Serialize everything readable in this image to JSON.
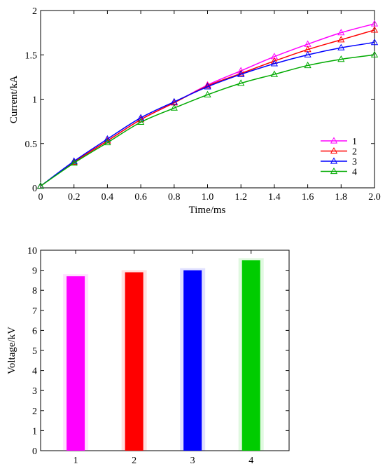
{
  "chart_data": [
    {
      "type": "line",
      "xlabel": "Time/ms",
      "ylabel": "Current/kA",
      "xlim": [
        0,
        2.0
      ],
      "ylim": [
        0,
        2
      ],
      "x_ticks": [
        "0",
        "0.2",
        "0.4",
        "0.6",
        "0.8",
        "1.0",
        "1.2",
        "1.4",
        "1.6",
        "1.8",
        "2.0"
      ],
      "y_ticks": [
        "0",
        "0.5",
        "1",
        "1.5",
        "2"
      ],
      "grid": false,
      "legend_position": "bottom-right",
      "marker": "open-triangle",
      "x": [
        0,
        0.2,
        0.4,
        0.6,
        0.8,
        1.0,
        1.2,
        1.4,
        1.6,
        1.8,
        2.0
      ],
      "series": [
        {
          "name": "1",
          "color": "#ff00ff",
          "values": [
            0.02,
            0.29,
            0.53,
            0.77,
            0.96,
            1.16,
            1.32,
            1.48,
            1.62,
            1.75,
            1.85
          ]
        },
        {
          "name": "2",
          "color": "#ff0000",
          "values": [
            0.02,
            0.29,
            0.53,
            0.77,
            0.96,
            1.15,
            1.29,
            1.43,
            1.56,
            1.67,
            1.78
          ]
        },
        {
          "name": "3",
          "color": "#0000ff",
          "values": [
            0.02,
            0.3,
            0.55,
            0.79,
            0.97,
            1.14,
            1.28,
            1.4,
            1.5,
            1.58,
            1.64
          ]
        },
        {
          "name": "4",
          "color": "#00aa00",
          "values": [
            0.02,
            0.28,
            0.51,
            0.74,
            0.9,
            1.05,
            1.18,
            1.28,
            1.38,
            1.45,
            1.5
          ]
        }
      ]
    },
    {
      "type": "bar",
      "xlabel": "",
      "ylabel": "Voltage/kV",
      "ylim": [
        0,
        10
      ],
      "y_ticks": [
        "0",
        "1",
        "2",
        "3",
        "4",
        "5",
        "6",
        "7",
        "8",
        "9",
        "10"
      ],
      "categories": [
        "1",
        "2",
        "3",
        "4"
      ],
      "values": [
        8.7,
        8.9,
        9.0,
        9.5
      ],
      "colors": [
        "#ff00ff",
        "#ff0000",
        "#0000ff",
        "#00cc00"
      ],
      "grid": false
    }
  ]
}
